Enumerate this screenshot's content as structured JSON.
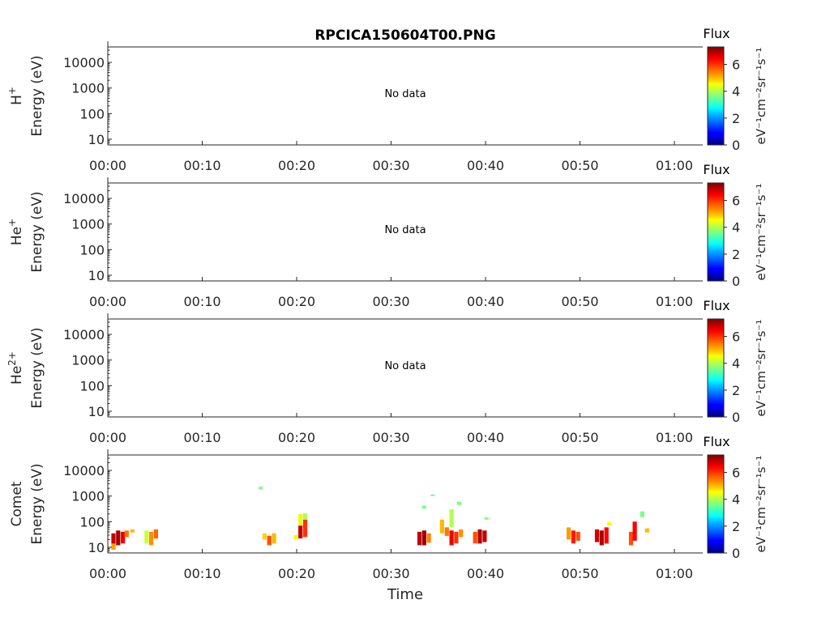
{
  "figure": {
    "title": "RPCICA150604T00.PNG",
    "xlabel": "Time"
  },
  "chart_data": [
    {
      "type": "heatmap",
      "panel": "H+",
      "species_label": "H",
      "species_sup": "+",
      "ylabel": "Energy (eV)",
      "yscale": "log",
      "ylim": [
        6,
        40000
      ],
      "yticks": [
        "10",
        "100",
        "1000",
        "10000"
      ],
      "xlim": [
        "00:00",
        "01:03"
      ],
      "xticks": [
        "00:00",
        "00:10",
        "00:20",
        "00:30",
        "00:40",
        "00:50",
        "01:00"
      ],
      "annotation": "No data",
      "colorbar": {
        "title": "Flux",
        "label": "eV⁻¹cm⁻²sr⁻¹s⁻¹",
        "range": [
          0,
          7.3
        ],
        "ticks": [
          "0",
          "2",
          "4",
          "6"
        ]
      },
      "patches": []
    },
    {
      "type": "heatmap",
      "panel": "He+",
      "species_label": "He",
      "species_sup": "+",
      "ylabel": "Energy (eV)",
      "yscale": "log",
      "ylim": [
        6,
        40000
      ],
      "yticks": [
        "10",
        "100",
        "1000",
        "10000"
      ],
      "xlim": [
        "00:00",
        "01:03"
      ],
      "xticks": [
        "00:00",
        "00:10",
        "00:20",
        "00:30",
        "00:40",
        "00:50",
        "01:00"
      ],
      "annotation": "No data",
      "colorbar": {
        "title": "Flux",
        "label": "eV⁻¹cm⁻²sr⁻¹s⁻¹",
        "range": [
          0,
          7.3
        ],
        "ticks": [
          "0",
          "2",
          "4",
          "6"
        ]
      },
      "patches": []
    },
    {
      "type": "heatmap",
      "panel": "He2+",
      "species_label": "He",
      "species_sup": "2+",
      "ylabel": "Energy (eV)",
      "yscale": "log",
      "ylim": [
        6,
        40000
      ],
      "yticks": [
        "10",
        "100",
        "1000",
        "10000"
      ],
      "xlim": [
        "00:00",
        "01:03"
      ],
      "xticks": [
        "00:00",
        "00:10",
        "00:20",
        "00:30",
        "00:40",
        "00:50",
        "01:00"
      ],
      "annotation": "No data",
      "colorbar": {
        "title": "Flux",
        "label": "eV⁻¹cm⁻²sr⁻¹s⁻¹",
        "range": [
          0,
          7.3
        ],
        "ticks": [
          "0",
          "2",
          "4",
          "6"
        ]
      },
      "patches": []
    },
    {
      "type": "heatmap",
      "panel": "Comet",
      "species_label": "Comet",
      "species_sup": "",
      "ylabel": "Energy (eV)",
      "yscale": "log",
      "ylim": [
        6,
        40000
      ],
      "yticks": [
        "10",
        "100",
        "1000",
        "10000"
      ],
      "xlim": [
        "00:00",
        "01:03"
      ],
      "xticks": [
        "00:00",
        "00:10",
        "00:20",
        "00:30",
        "00:40",
        "00:50",
        "01:00"
      ],
      "annotation": "",
      "colorbar": {
        "title": "Flux",
        "label": "eV⁻¹cm⁻²sr⁻¹s⁻¹",
        "range": [
          0,
          7.3
        ],
        "ticks": [
          "0",
          "2",
          "4",
          "6"
        ]
      },
      "patches_note": "t in minutes, e_lo/e_hi in eV, flux in colorbar units",
      "patches": [
        {
          "t": 0.6,
          "e_lo": 8,
          "e_hi": 14,
          "flux": 5.2
        },
        {
          "t": 0.6,
          "e_lo": 14,
          "e_hi": 35,
          "flux": 6.8
        },
        {
          "t": 1.1,
          "e_lo": 12,
          "e_hi": 45,
          "flux": 7.0
        },
        {
          "t": 1.6,
          "e_lo": 14,
          "e_hi": 40,
          "flux": 6.5
        },
        {
          "t": 2.0,
          "e_lo": 25,
          "e_hi": 45,
          "flux": 5.5
        },
        {
          "t": 2.6,
          "e_lo": 38,
          "e_hi": 50,
          "flux": 5.0
        },
        {
          "t": 4.1,
          "e_lo": 14,
          "e_hi": 45,
          "flux": 4.2
        },
        {
          "t": 4.6,
          "e_lo": 12,
          "e_hi": 40,
          "flux": 5.3
        },
        {
          "t": 5.1,
          "e_lo": 22,
          "e_hi": 50,
          "flux": 5.6
        },
        {
          "t": 16.2,
          "e_lo": 1800,
          "e_hi": 2300,
          "flux": 3.6
        },
        {
          "t": 16.6,
          "e_lo": 20,
          "e_hi": 35,
          "flux": 4.8
        },
        {
          "t": 17.1,
          "e_lo": 12,
          "e_hi": 28,
          "flux": 5.8
        },
        {
          "t": 17.6,
          "e_lo": 14,
          "e_hi": 35,
          "flux": 5.0
        },
        {
          "t": 19.9,
          "e_lo": 20,
          "e_hi": 30,
          "flux": 4.6
        },
        {
          "t": 20.4,
          "e_lo": 22,
          "e_hi": 70,
          "flux": 6.8
        },
        {
          "t": 20.4,
          "e_lo": 70,
          "e_hi": 200,
          "flux": 4.4
        },
        {
          "t": 20.9,
          "e_lo": 25,
          "e_hi": 120,
          "flux": 6.0
        },
        {
          "t": 20.9,
          "e_lo": 120,
          "e_hi": 210,
          "flux": 4.0
        },
        {
          "t": 33.0,
          "e_lo": 12,
          "e_hi": 40,
          "flux": 6.8
        },
        {
          "t": 33.5,
          "e_lo": 12,
          "e_hi": 45,
          "flux": 7.1
        },
        {
          "t": 33.5,
          "e_lo": 320,
          "e_hi": 420,
          "flux": 3.6
        },
        {
          "t": 34.0,
          "e_lo": 15,
          "e_hi": 35,
          "flux": 5.4
        },
        {
          "t": 34.4,
          "e_lo": 1000,
          "e_hi": 1150,
          "flux": 3.5
        },
        {
          "t": 35.4,
          "e_lo": 35,
          "e_hi": 120,
          "flux": 5.0
        },
        {
          "t": 35.9,
          "e_lo": 28,
          "e_hi": 60,
          "flux": 5.5
        },
        {
          "t": 36.4,
          "e_lo": 12,
          "e_hi": 45,
          "flux": 6.5
        },
        {
          "t": 36.4,
          "e_lo": 60,
          "e_hi": 300,
          "flux": 4.0
        },
        {
          "t": 36.9,
          "e_lo": 14,
          "e_hi": 40,
          "flux": 6.0
        },
        {
          "t": 37.2,
          "e_lo": 450,
          "e_hi": 600,
          "flux": 3.6
        },
        {
          "t": 37.4,
          "e_lo": 25,
          "e_hi": 50,
          "flux": 5.3
        },
        {
          "t": 38.9,
          "e_lo": 14,
          "e_hi": 40,
          "flux": 5.8
        },
        {
          "t": 39.4,
          "e_lo": 14,
          "e_hi": 50,
          "flux": 6.9
        },
        {
          "t": 39.9,
          "e_lo": 16,
          "e_hi": 45,
          "flux": 6.8
        },
        {
          "t": 40.1,
          "e_lo": 120,
          "e_hi": 150,
          "flux": 3.7
        },
        {
          "t": 48.8,
          "e_lo": 20,
          "e_hi": 60,
          "flux": 5.2
        },
        {
          "t": 49.3,
          "e_lo": 14,
          "e_hi": 45,
          "flux": 6.2
        },
        {
          "t": 49.8,
          "e_lo": 18,
          "e_hi": 40,
          "flux": 5.8
        },
        {
          "t": 51.8,
          "e_lo": 16,
          "e_hi": 50,
          "flux": 6.7
        },
        {
          "t": 52.3,
          "e_lo": 12,
          "e_hi": 45,
          "flux": 7.0
        },
        {
          "t": 52.8,
          "e_lo": 14,
          "e_hi": 60,
          "flux": 6.4
        },
        {
          "t": 53.1,
          "e_lo": 70,
          "e_hi": 95,
          "flux": 4.6
        },
        {
          "t": 55.4,
          "e_lo": 12,
          "e_hi": 40,
          "flux": 5.8
        },
        {
          "t": 55.8,
          "e_lo": 18,
          "e_hi": 100,
          "flux": 6.4
        },
        {
          "t": 56.6,
          "e_lo": 150,
          "e_hi": 250,
          "flux": 3.6
        },
        {
          "t": 57.1,
          "e_lo": 38,
          "e_hi": 55,
          "flux": 5.0
        }
      ]
    }
  ]
}
